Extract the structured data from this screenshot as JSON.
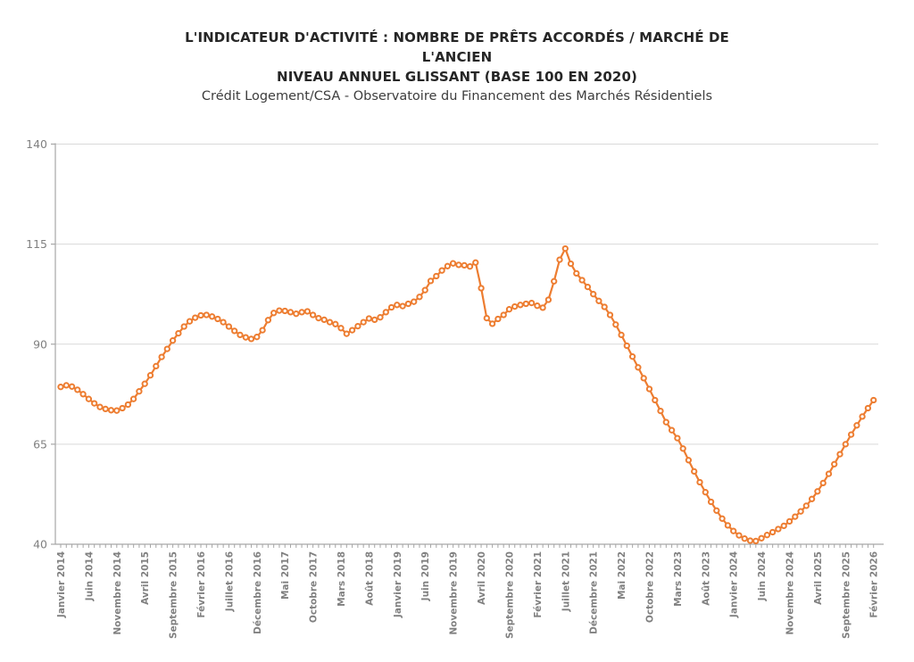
{
  "header": {
    "title_line1": "L'INDICATEUR D'ACTIVITÉ : NOMBRE DE PRÊTS ACCORDÉS / MARCHÉ DE",
    "title_line2": "L'ANCIEN",
    "title_line3": "NIVEAU ANNUEL GLISSANT (BASE 100 EN 2020)",
    "subtitle": "Crédit Logement/CSA - Observatoire du Financement des Marchés Résidentiels"
  },
  "chart_data": {
    "type": "line",
    "title": "L'INDICATEUR D'ACTIVITÉ : NOMBRE DE PRÊTS ACCORDÉS / MARCHÉ DE L'ANCIEN — NIVEAU ANNUEL GLISSANT (BASE 100 EN 2020)",
    "subtitle": "Crédit Logement/CSA - Observatoire du Financement des Marchés Résidentiels",
    "xlabel": "",
    "ylabel": "",
    "ylim": [
      40,
      140
    ],
    "y_ticks": [
      40,
      65,
      90,
      115,
      140
    ],
    "grid": "horizontal",
    "legend": "none",
    "x_start": "Janvier 2014",
    "x_end": "Février 2026",
    "n_points": 146,
    "x_tick_step_months": 5,
    "x_tick_labels": [
      "Janvier 2014",
      "Juin 2014",
      "Novembre 2014",
      "Avril 2015",
      "Septembre 2015",
      "Février 2016",
      "Juillet 2016",
      "Décembre 2016",
      "Mai 2017",
      "Octobre 2017",
      "Mars 2018",
      "Août 2018",
      "Janvier 2019",
      "Juin 2019",
      "Novembre 2019",
      "Avril 2020",
      "Septembre 2020",
      "Février 2021",
      "Juillet 2021",
      "Décembre 2021",
      "Mai 2022",
      "Octobre 2022",
      "Mars 2023",
      "Août 2023",
      "Janvier 2024",
      "Juin 2024",
      "Novembre 2024",
      "Avril 2025",
      "Septembre 2025",
      "Février 2026"
    ],
    "series": [
      {
        "color": "#ED7D31",
        "marker": "open-circle",
        "marker_fill": "#ffffff",
        "values": [
          79.3,
          79.7,
          79.4,
          78.6,
          77.5,
          76.3,
          75.2,
          74.3,
          73.8,
          73.5,
          73.4,
          74.0,
          74.9,
          76.3,
          78.2,
          80.1,
          82.2,
          84.5,
          86.8,
          88.8,
          90.9,
          92.7,
          94.4,
          95.7,
          96.6,
          97.2,
          97.3,
          96.9,
          96.3,
          95.5,
          94.4,
          93.3,
          92.3,
          91.7,
          91.3,
          91.8,
          93.5,
          96.0,
          97.8,
          98.4,
          98.3,
          98.0,
          97.6,
          98.0,
          98.2,
          97.3,
          96.5,
          96.1,
          95.5,
          95.0,
          94.0,
          92.6,
          93.5,
          94.5,
          95.5,
          96.4,
          96.1,
          96.7,
          98.0,
          99.2,
          99.8,
          99.5,
          100.1,
          100.6,
          101.8,
          103.5,
          105.8,
          107.0,
          108.4,
          109.5,
          110.2,
          109.8,
          109.7,
          109.4,
          110.4,
          104.0,
          96.5,
          95.1,
          96.3,
          97.3,
          98.7,
          99.4,
          99.8,
          100.1,
          100.3,
          99.6,
          99.1,
          101.1,
          105.7,
          111.1,
          113.9,
          110.1,
          107.7,
          106.0,
          104.3,
          102.5,
          100.8,
          99.3,
          97.3,
          94.9,
          92.3,
          89.6,
          86.9,
          84.2,
          81.5,
          78.8,
          76.0,
          73.3,
          70.5,
          68.5,
          66.5,
          63.9,
          61.0,
          58.2,
          55.5,
          53.0,
          50.6,
          48.4,
          46.4,
          44.7,
          43.3,
          42.2,
          41.4,
          40.9,
          40.8,
          41.5,
          42.3,
          43.0,
          43.8,
          44.6,
          45.7,
          46.9,
          48.2,
          49.6,
          51.3,
          53.2,
          55.3,
          57.6,
          60.0,
          62.5,
          65.0,
          67.4,
          69.7,
          71.9,
          74.0,
          76.0
        ]
      }
    ],
    "colors": {
      "line": "#ED7D31",
      "grid": "#D9D9D9",
      "axis": "#A6A6A6",
      "tick_label": "#808080",
      "title": "#262626",
      "subtitle": "#3d3d3d",
      "background": "#ffffff"
    }
  }
}
